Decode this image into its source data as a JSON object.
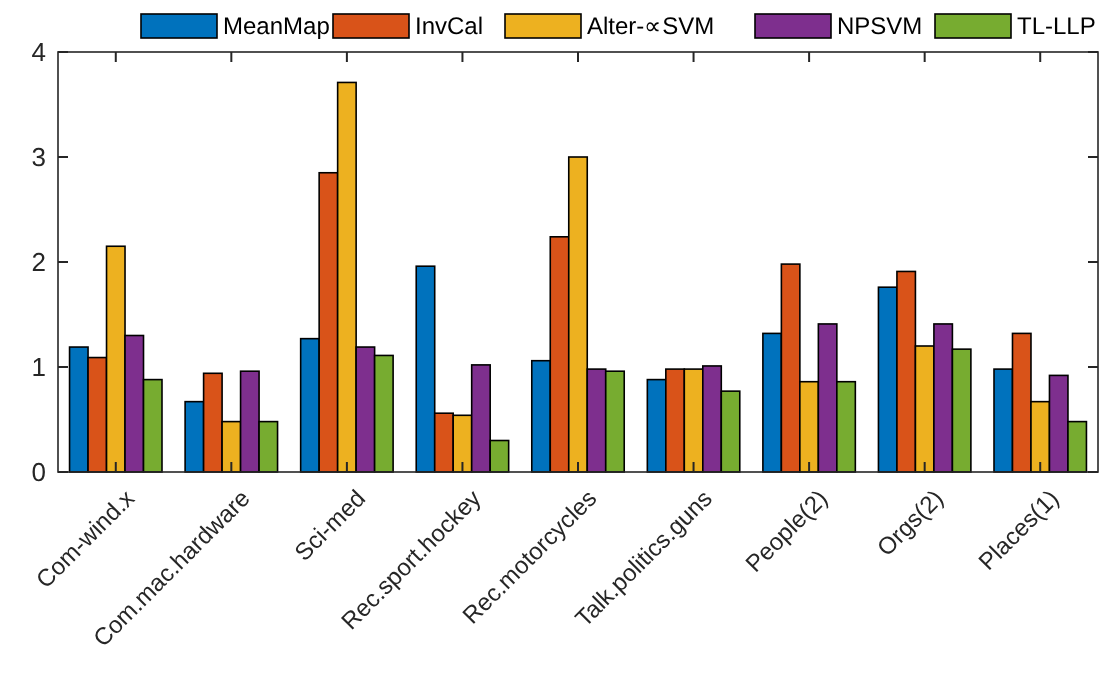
{
  "chart_data": {
    "type": "bar",
    "categories": [
      "Com-wind.x",
      "Com.mac.hardware",
      "Sci-med",
      "Rec.sport.hockey",
      "Rec.motorcycles",
      "Talk.politics.guns",
      "People(2)",
      "Orgs(2)",
      "Places(1)"
    ],
    "series": [
      {
        "name": "MeanMap",
        "color": "#0072bd",
        "values": [
          1.19,
          0.67,
          1.27,
          1.96,
          1.06,
          0.88,
          1.32,
          1.76,
          0.98
        ]
      },
      {
        "name": "InvCal",
        "color": "#d95319",
        "values": [
          1.09,
          0.94,
          2.85,
          0.56,
          2.24,
          0.98,
          1.98,
          1.91,
          1.32
        ]
      },
      {
        "name": "Alter-∝SVM",
        "color": "#edb120",
        "values": [
          2.15,
          0.48,
          3.71,
          0.54,
          3.0,
          0.98,
          0.86,
          1.2,
          0.67
        ]
      },
      {
        "name": "NPSVM",
        "color": "#7e2f8e",
        "values": [
          1.3,
          0.96,
          1.19,
          1.02,
          0.98,
          1.01,
          1.41,
          1.41,
          0.92
        ]
      },
      {
        "name": "TL-LLP",
        "color": "#77ac30",
        "values": [
          0.88,
          0.48,
          1.11,
          0.3,
          0.96,
          0.77,
          0.86,
          1.17,
          0.48
        ]
      }
    ],
    "ylim": [
      0,
      4
    ],
    "yticks": [
      0,
      1,
      2,
      3,
      4
    ],
    "legend": "top"
  }
}
